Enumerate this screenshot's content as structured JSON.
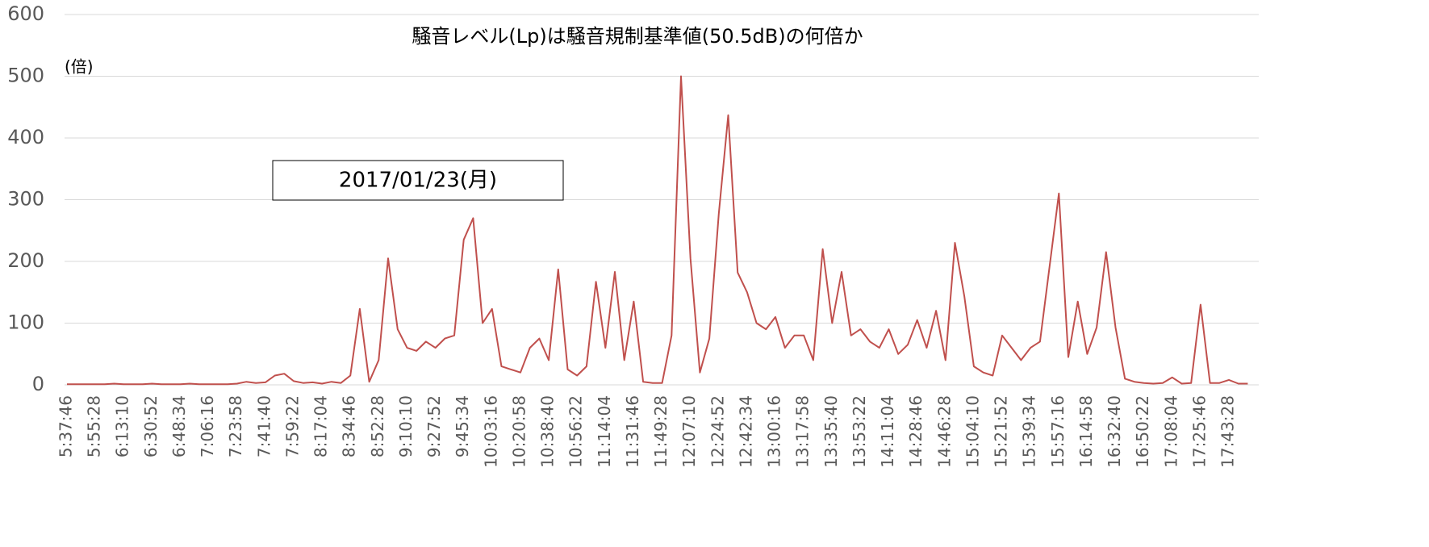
{
  "chart_data": {
    "type": "line",
    "title": "騒音レベル(Lp)は騒音規制基準値(50.5dB)の何倍か",
    "y_label": "(倍)",
    "annotation": "2017/01/23(月)",
    "color": "#c0504d",
    "ylim": [
      0,
      600
    ],
    "yticks": [
      0,
      100,
      200,
      300,
      400,
      500,
      600
    ],
    "grid": true,
    "categories": [
      "5:37:46",
      null,
      null,
      "5:55:28",
      null,
      null,
      "6:13:10",
      null,
      null,
      "6:30:52",
      null,
      null,
      "6:48:34",
      null,
      null,
      "7:06:16",
      null,
      null,
      "7:23:58",
      null,
      null,
      "7:41:40",
      null,
      null,
      "7:59:22",
      null,
      null,
      "8:17:04",
      null,
      null,
      "8:34:46",
      null,
      null,
      "8:52:28",
      null,
      null,
      "9:10:10",
      null,
      null,
      "9:27:52",
      null,
      null,
      "9:45:34",
      null,
      null,
      "10:03:16",
      null,
      null,
      "10:20:58",
      null,
      null,
      "10:38:40",
      null,
      null,
      "10:56:22",
      null,
      null,
      "11:14:04",
      null,
      null,
      "11:31:46",
      null,
      null,
      "11:49:28",
      null,
      null,
      "12:07:10",
      null,
      null,
      "12:24:52",
      null,
      null,
      "12:42:34",
      null,
      null,
      "13:00:16",
      null,
      null,
      "13:17:58",
      null,
      null,
      "13:35:40",
      null,
      null,
      "13:53:22",
      null,
      null,
      "14:11:04",
      null,
      null,
      "14:28:46",
      null,
      null,
      "14:46:28",
      null,
      null,
      "15:04:10",
      null,
      null,
      "15:21:52",
      null,
      null,
      "15:39:34",
      null,
      null,
      "15:57:16",
      null,
      null,
      "16:14:58",
      null,
      null,
      "16:32:40",
      null,
      null,
      "16:50:22",
      null,
      null,
      "17:08:04",
      null,
      null,
      "17:25:46",
      null,
      null,
      "17:43:28",
      null,
      null
    ],
    "values": [
      1,
      1,
      1,
      1,
      1,
      2,
      1,
      1,
      1,
      2,
      1,
      1,
      1,
      2,
      1,
      1,
      1,
      1,
      2,
      5,
      3,
      4,
      15,
      18,
      6,
      3,
      4,
      2,
      5,
      3,
      15,
      123,
      5,
      40,
      205,
      90,
      60,
      55,
      70,
      60,
      75,
      80,
      235,
      270,
      100,
      123,
      30,
      25,
      20,
      60,
      75,
      40,
      187,
      25,
      15,
      30,
      167,
      60,
      183,
      40,
      135,
      5,
      3,
      3,
      80,
      500,
      205,
      20,
      75,
      277,
      437,
      182,
      150,
      100,
      90,
      110,
      60,
      80,
      80,
      40,
      220,
      100,
      183,
      80,
      90,
      70,
      60,
      90,
      50,
      65,
      105,
      60,
      120,
      40,
      230,
      143,
      30,
      20,
      15,
      80,
      60,
      40,
      60,
      70,
      190,
      310,
      45,
      135,
      50,
      93,
      215,
      93,
      10,
      5,
      3,
      2,
      3,
      12,
      2,
      3,
      130,
      3,
      3,
      8,
      2,
      2
    ]
  }
}
